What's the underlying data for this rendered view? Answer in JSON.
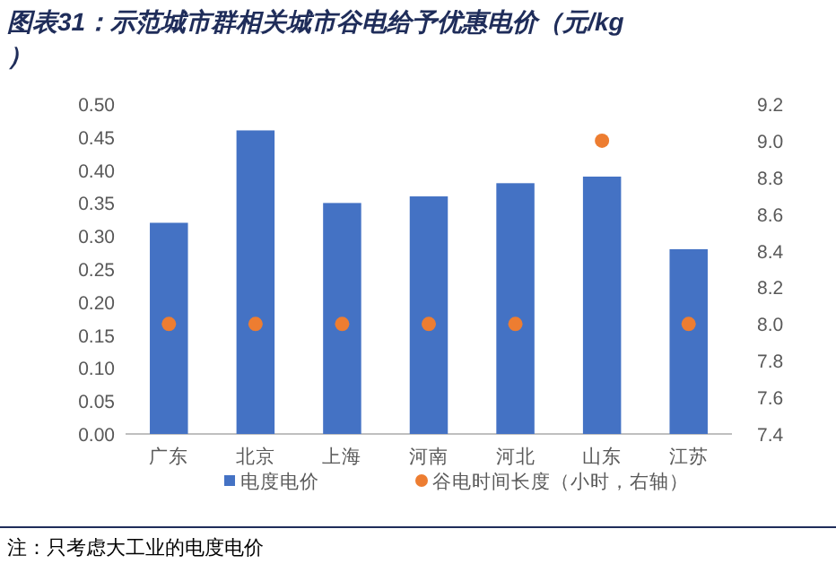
{
  "chart_data": {
    "type": "bar",
    "title": "图表31：示范城市群相关城市谷电给予优惠电价（元/kg）",
    "categories": [
      "广东",
      "北京",
      "上海",
      "河南",
      "河北",
      "山东",
      "江苏"
    ],
    "series": [
      {
        "name": "电度电价",
        "color": "#4472c4",
        "values": [
          0.32,
          0.46,
          0.35,
          0.36,
          0.38,
          0.39,
          0.28
        ]
      },
      {
        "name": "谷电时间长度（小时，右轴）",
        "type": "scatter",
        "axis": "y2",
        "color": "#ed7d31",
        "values": [
          8.0,
          8.0,
          8.0,
          8.0,
          8.0,
          9.0,
          8.0
        ]
      }
    ],
    "ylim": [
      0,
      0.5
    ],
    "yticks": [
      {
        "value": 0,
        "label": "0.00"
      },
      0.05,
      {
        "value": 0.1,
        "label": "0.10"
      },
      0.15,
      {
        "value": 0.2,
        "label": "0.20"
      },
      0.25,
      {
        "value": 0.3,
        "label": "0.30"
      },
      0.35,
      {
        "value": 0.4,
        "label": "0.40"
      },
      0.45,
      {
        "value": 0.5,
        "label": "0.50"
      }
    ],
    "y2lim": [
      7.4,
      9.2
    ],
    "y2ticks": [
      7.4,
      7.6,
      7.8,
      {
        "value": 8,
        "label": "8.0"
      },
      8.2,
      8.4,
      8.6,
      8.8,
      {
        "value": 9,
        "label": "9.0"
      },
      9.2
    ],
    "legend": "bottom",
    "marker": "circle",
    "annotations": [
      "注：只考虑大工业的电度电价"
    ]
  }
}
